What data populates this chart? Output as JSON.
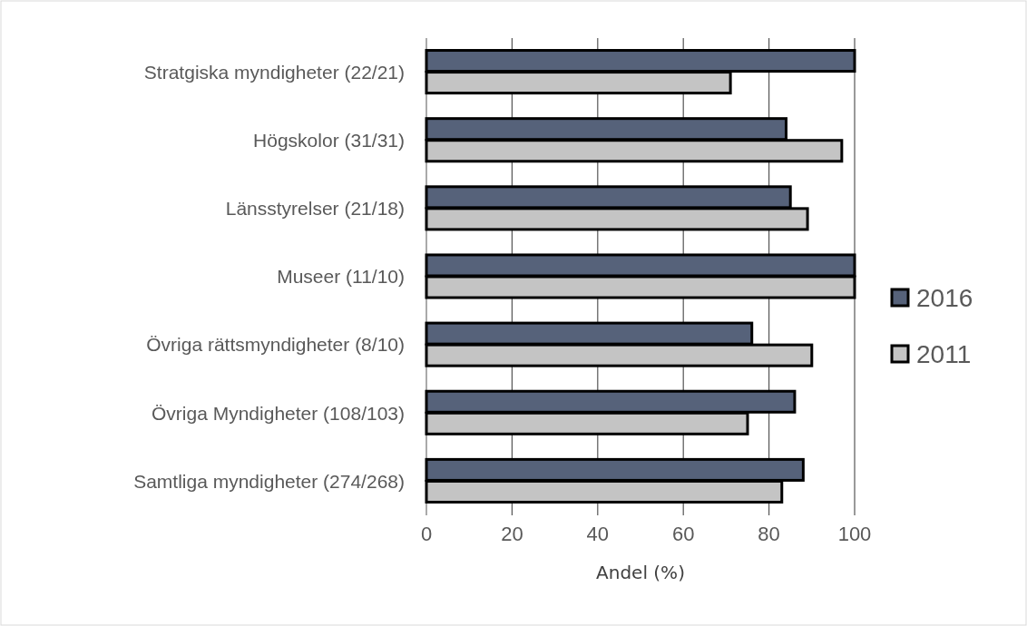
{
  "chart_data": {
    "type": "bar",
    "orientation": "horizontal",
    "xlabel": "Andel (%)",
    "categories": [
      "Stratgiska myndigheter (22/21)",
      "Högskolor (31/31)",
      "Länsstyrelser (21/18)",
      "Museer (11/10)",
      "Övriga rättsmyndigheter (8/10)",
      "Övriga Myndigheter (108/103)",
      "Samtliga myndigheter (274/268)"
    ],
    "series": [
      {
        "name": "2016",
        "color": "#56627a",
        "values": [
          100,
          84,
          85,
          100,
          76,
          86,
          88
        ]
      },
      {
        "name": "2011",
        "color": "#c4c4c4",
        "values": [
          71,
          97,
          89,
          100,
          90,
          75,
          83
        ]
      }
    ],
    "xlim": [
      0,
      100
    ],
    "xticks": [
      0,
      20,
      40,
      60,
      80,
      100
    ],
    "grid": "x",
    "legend": "right"
  }
}
